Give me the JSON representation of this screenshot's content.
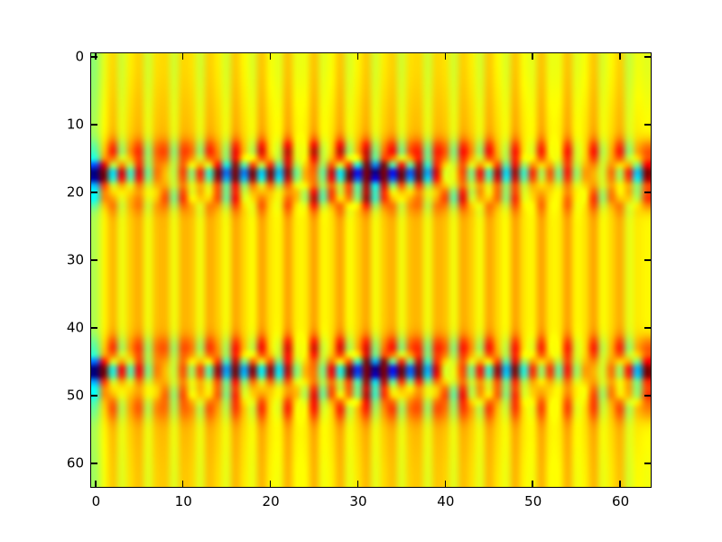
{
  "figure": {
    "background_color": "#ffffff"
  },
  "chart_data": {
    "type": "heatmap",
    "title": "",
    "xlabel": "",
    "ylabel": "",
    "colormap": "jet",
    "grid": {
      "cols": 64,
      "rows": 64
    },
    "x_range": [
      -0.5,
      63.5
    ],
    "y_range": [
      63.5,
      -0.5
    ],
    "y_axis_inverted": true,
    "x_ticks": [
      0,
      10,
      20,
      30,
      40,
      50,
      60
    ],
    "y_ticks": [
      0,
      10,
      20,
      30,
      40,
      50,
      60
    ],
    "legend": "none",
    "gridlines": false,
    "value_mapping": {
      "base": 0.65,
      "scale": 0.33
    },
    "field_model": {
      "description": "mostly-yellow wavefield (value ~0) with two horizontal oscillatory bands; positive excursions render red, negative render cyan/blue",
      "streak": {
        "wavelength": 2.9,
        "phase": -2.2,
        "bias": 0.3,
        "amp_base": 0.16,
        "amp_peaks": [
          {
            "center": 14.0,
            "sigma": 1.8,
            "amp": 0.55,
            "band": 0
          },
          {
            "center": 21.6,
            "sigma": 1.6,
            "amp": 0.28,
            "band": 0
          },
          {
            "center": 43.0,
            "sigma": 1.8,
            "amp": 0.5,
            "band": 1
          },
          {
            "center": 51.8,
            "sigma": 2.0,
            "amp": 0.38,
            "band": 1
          }
        ]
      },
      "bands": [
        {
          "center": 17.3,
          "sigma": 1.6,
          "wavelength": 2.13,
          "phase": -1.5708,
          "amp": 1.9,
          "secondary": {
            "offset": 3.2,
            "sigma": 1.3,
            "amp": -0.6,
            "phase_shift": 2.4
          },
          "envelope": [
            [
              0,
              1.0
            ],
            [
              2,
              0.62
            ],
            [
              6,
              0.52
            ],
            [
              12,
              0.58
            ],
            [
              18,
              0.7
            ],
            [
              24,
              0.92
            ],
            [
              30,
              1.0
            ],
            [
              38,
              0.95
            ],
            [
              44,
              0.75
            ],
            [
              48,
              0.4
            ],
            [
              52,
              0.3
            ],
            [
              56,
              0.45
            ],
            [
              60,
              0.6
            ],
            [
              63,
              0.72
            ]
          ]
        },
        {
          "center": 46.4,
          "sigma": 1.6,
          "wavelength": 2.13,
          "phase": -1.5708,
          "amp": 1.9,
          "secondary": {
            "offset": 3.2,
            "sigma": 1.3,
            "amp": -0.6,
            "phase_shift": 2.4
          },
          "envelope": [
            [
              0,
              1.0
            ],
            [
              2,
              0.55
            ],
            [
              8,
              0.45
            ],
            [
              14,
              0.55
            ],
            [
              20,
              0.7
            ],
            [
              26,
              0.85
            ],
            [
              32,
              1.0
            ],
            [
              40,
              0.95
            ],
            [
              45,
              0.7
            ],
            [
              50,
              0.35
            ],
            [
              55,
              0.4
            ],
            [
              59,
              0.55
            ],
            [
              63,
              0.8
            ]
          ]
        }
      ],
      "tints": {
        "edge_amp": 0.22,
        "edge_decay": 1.2,
        "top_amp": 0.1,
        "top_sigma": 8,
        "bottom_amp": 0.05,
        "bottom_sigma": 6
      }
    },
    "key_colors": {
      "background_field": "#ffe600",
      "positive_extreme": "#800000",
      "negative_extreme": "#000080",
      "axes": "#000000"
    }
  }
}
